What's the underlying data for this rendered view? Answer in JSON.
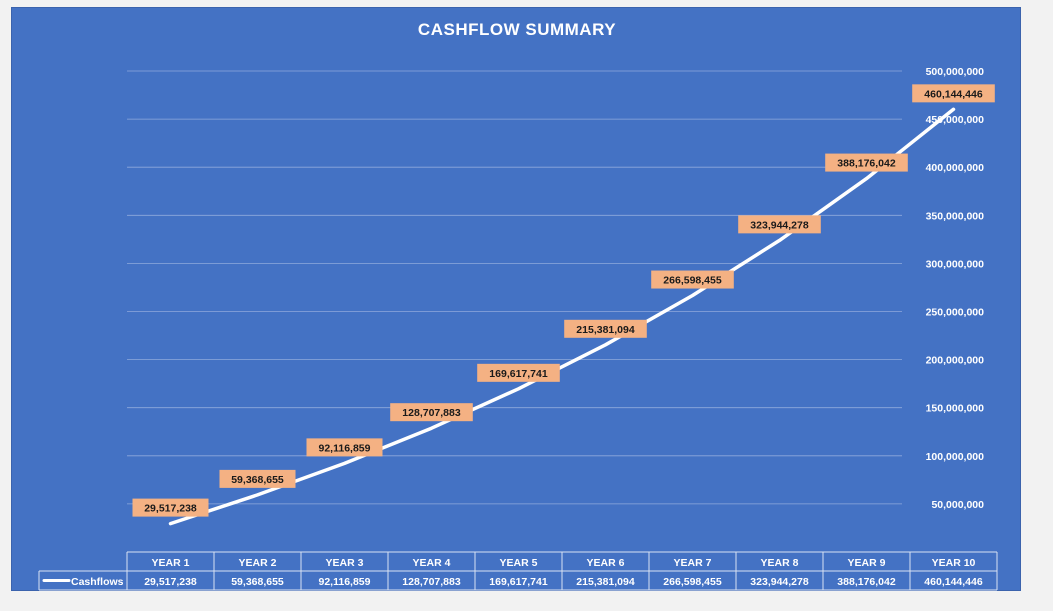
{
  "chart_data": {
    "type": "line",
    "title": "CASHFLOW SUMMARY",
    "categories": [
      "YEAR 1",
      "YEAR 2",
      "YEAR 3",
      "YEAR 4",
      "YEAR 5",
      "YEAR 6",
      "YEAR 7",
      "YEAR 8",
      "YEAR 9",
      "YEAR 10"
    ],
    "series": [
      {
        "name": "Cashflows",
        "values": [
          29517238,
          59368655,
          92116859,
          128707883,
          169617741,
          215381094,
          266598455,
          323944278,
          388176042,
          460144446
        ],
        "labels": [
          "29,517,238",
          "59,368,655",
          "92,116,859",
          "128,707,883",
          "169,617,741",
          "215,381,094",
          "266,598,455",
          "323,944,278",
          "388,176,042",
          "460,144,446"
        ]
      }
    ],
    "y_ticks": [
      "50,000,000",
      "100,000,000",
      "150,000,000",
      "200,000,000",
      "250,000,000",
      "300,000,000",
      "350,000,000",
      "400,000,000",
      "450,000,000",
      "500,000,000"
    ],
    "ylim": [
      0,
      500000000
    ],
    "y_axis_position": "right",
    "grid": true,
    "data_table": true,
    "colors": {
      "background": "#4472c4",
      "line": "#ffffff",
      "data_label_fill": "#f4b183",
      "data_label_text": "#1a1a1a"
    }
  }
}
